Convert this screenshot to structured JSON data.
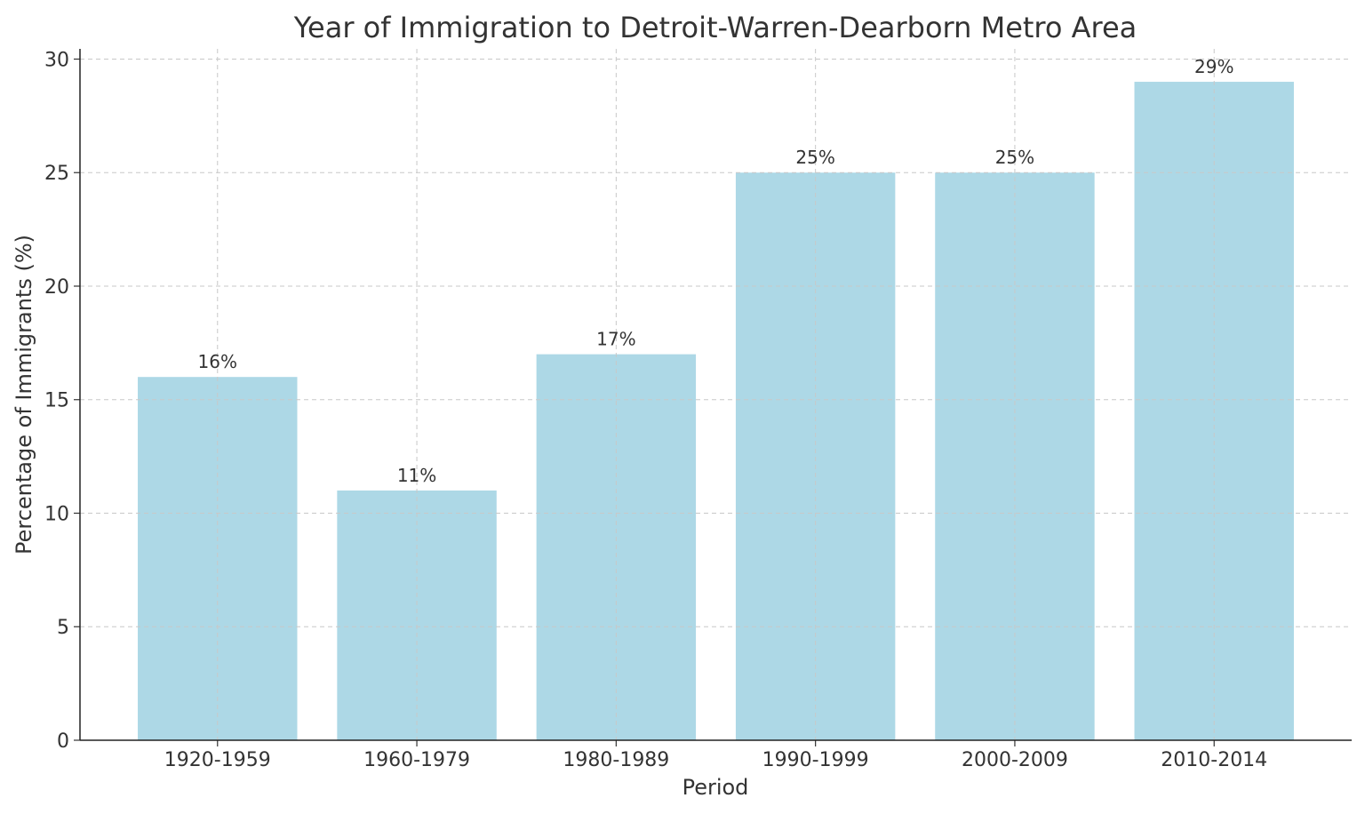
{
  "chart_data": {
    "type": "bar",
    "title": "Year of Immigration to Detroit-Warren-Dearborn Metro Area",
    "xlabel": "Period",
    "ylabel": "Percentage of Immigrants (%)",
    "categories": [
      "1920-1959",
      "1960-1979",
      "1980-1989",
      "1990-1999",
      "2000-2009",
      "2010-2014"
    ],
    "values": [
      16,
      11,
      17,
      25,
      25,
      29
    ],
    "data_labels": [
      "16%",
      "11%",
      "17%",
      "25%",
      "25%",
      "29%"
    ],
    "ylim": [
      0,
      30.45
    ],
    "yticks": [
      0,
      5,
      10,
      15,
      20,
      25,
      30
    ],
    "grid": true,
    "grid_style": "dashed",
    "bar_color": "#add8e6"
  }
}
